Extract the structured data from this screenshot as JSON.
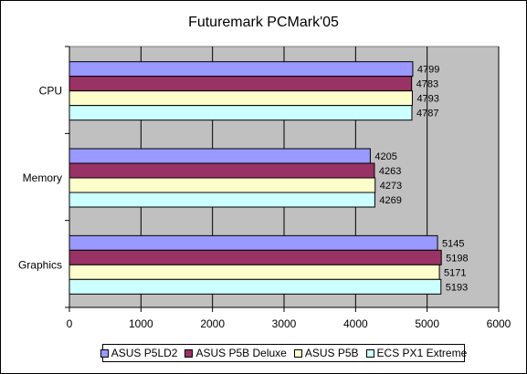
{
  "chart_data": {
    "type": "bar",
    "orientation": "horizontal",
    "title": "Futuremark PCMark'05",
    "categories": [
      "CPU",
      "Memory",
      "Graphics"
    ],
    "series": [
      {
        "name": "ASUS P5LD2",
        "color": "#9999ff",
        "values": [
          4799,
          4205,
          5145
        ]
      },
      {
        "name": "ASUS P5B Deluxe",
        "color": "#993366",
        "values": [
          4783,
          4263,
          5198
        ]
      },
      {
        "name": "ASUS P5B",
        "color": "#ffffcc",
        "values": [
          4793,
          4273,
          5171
        ]
      },
      {
        "name": "ECS PX1 Extreme",
        "color": "#ccffff",
        "values": [
          4787,
          4269,
          5193
        ]
      }
    ],
    "xlim": [
      0,
      6000
    ],
    "x_ticks": [
      "0",
      "1000",
      "2000",
      "3000",
      "4000",
      "5000",
      "6000"
    ],
    "xlabel": "",
    "ylabel": "",
    "grid": "vertical major gridlines",
    "plot_background": "#c0c0c0",
    "legend_position": "bottom"
  }
}
